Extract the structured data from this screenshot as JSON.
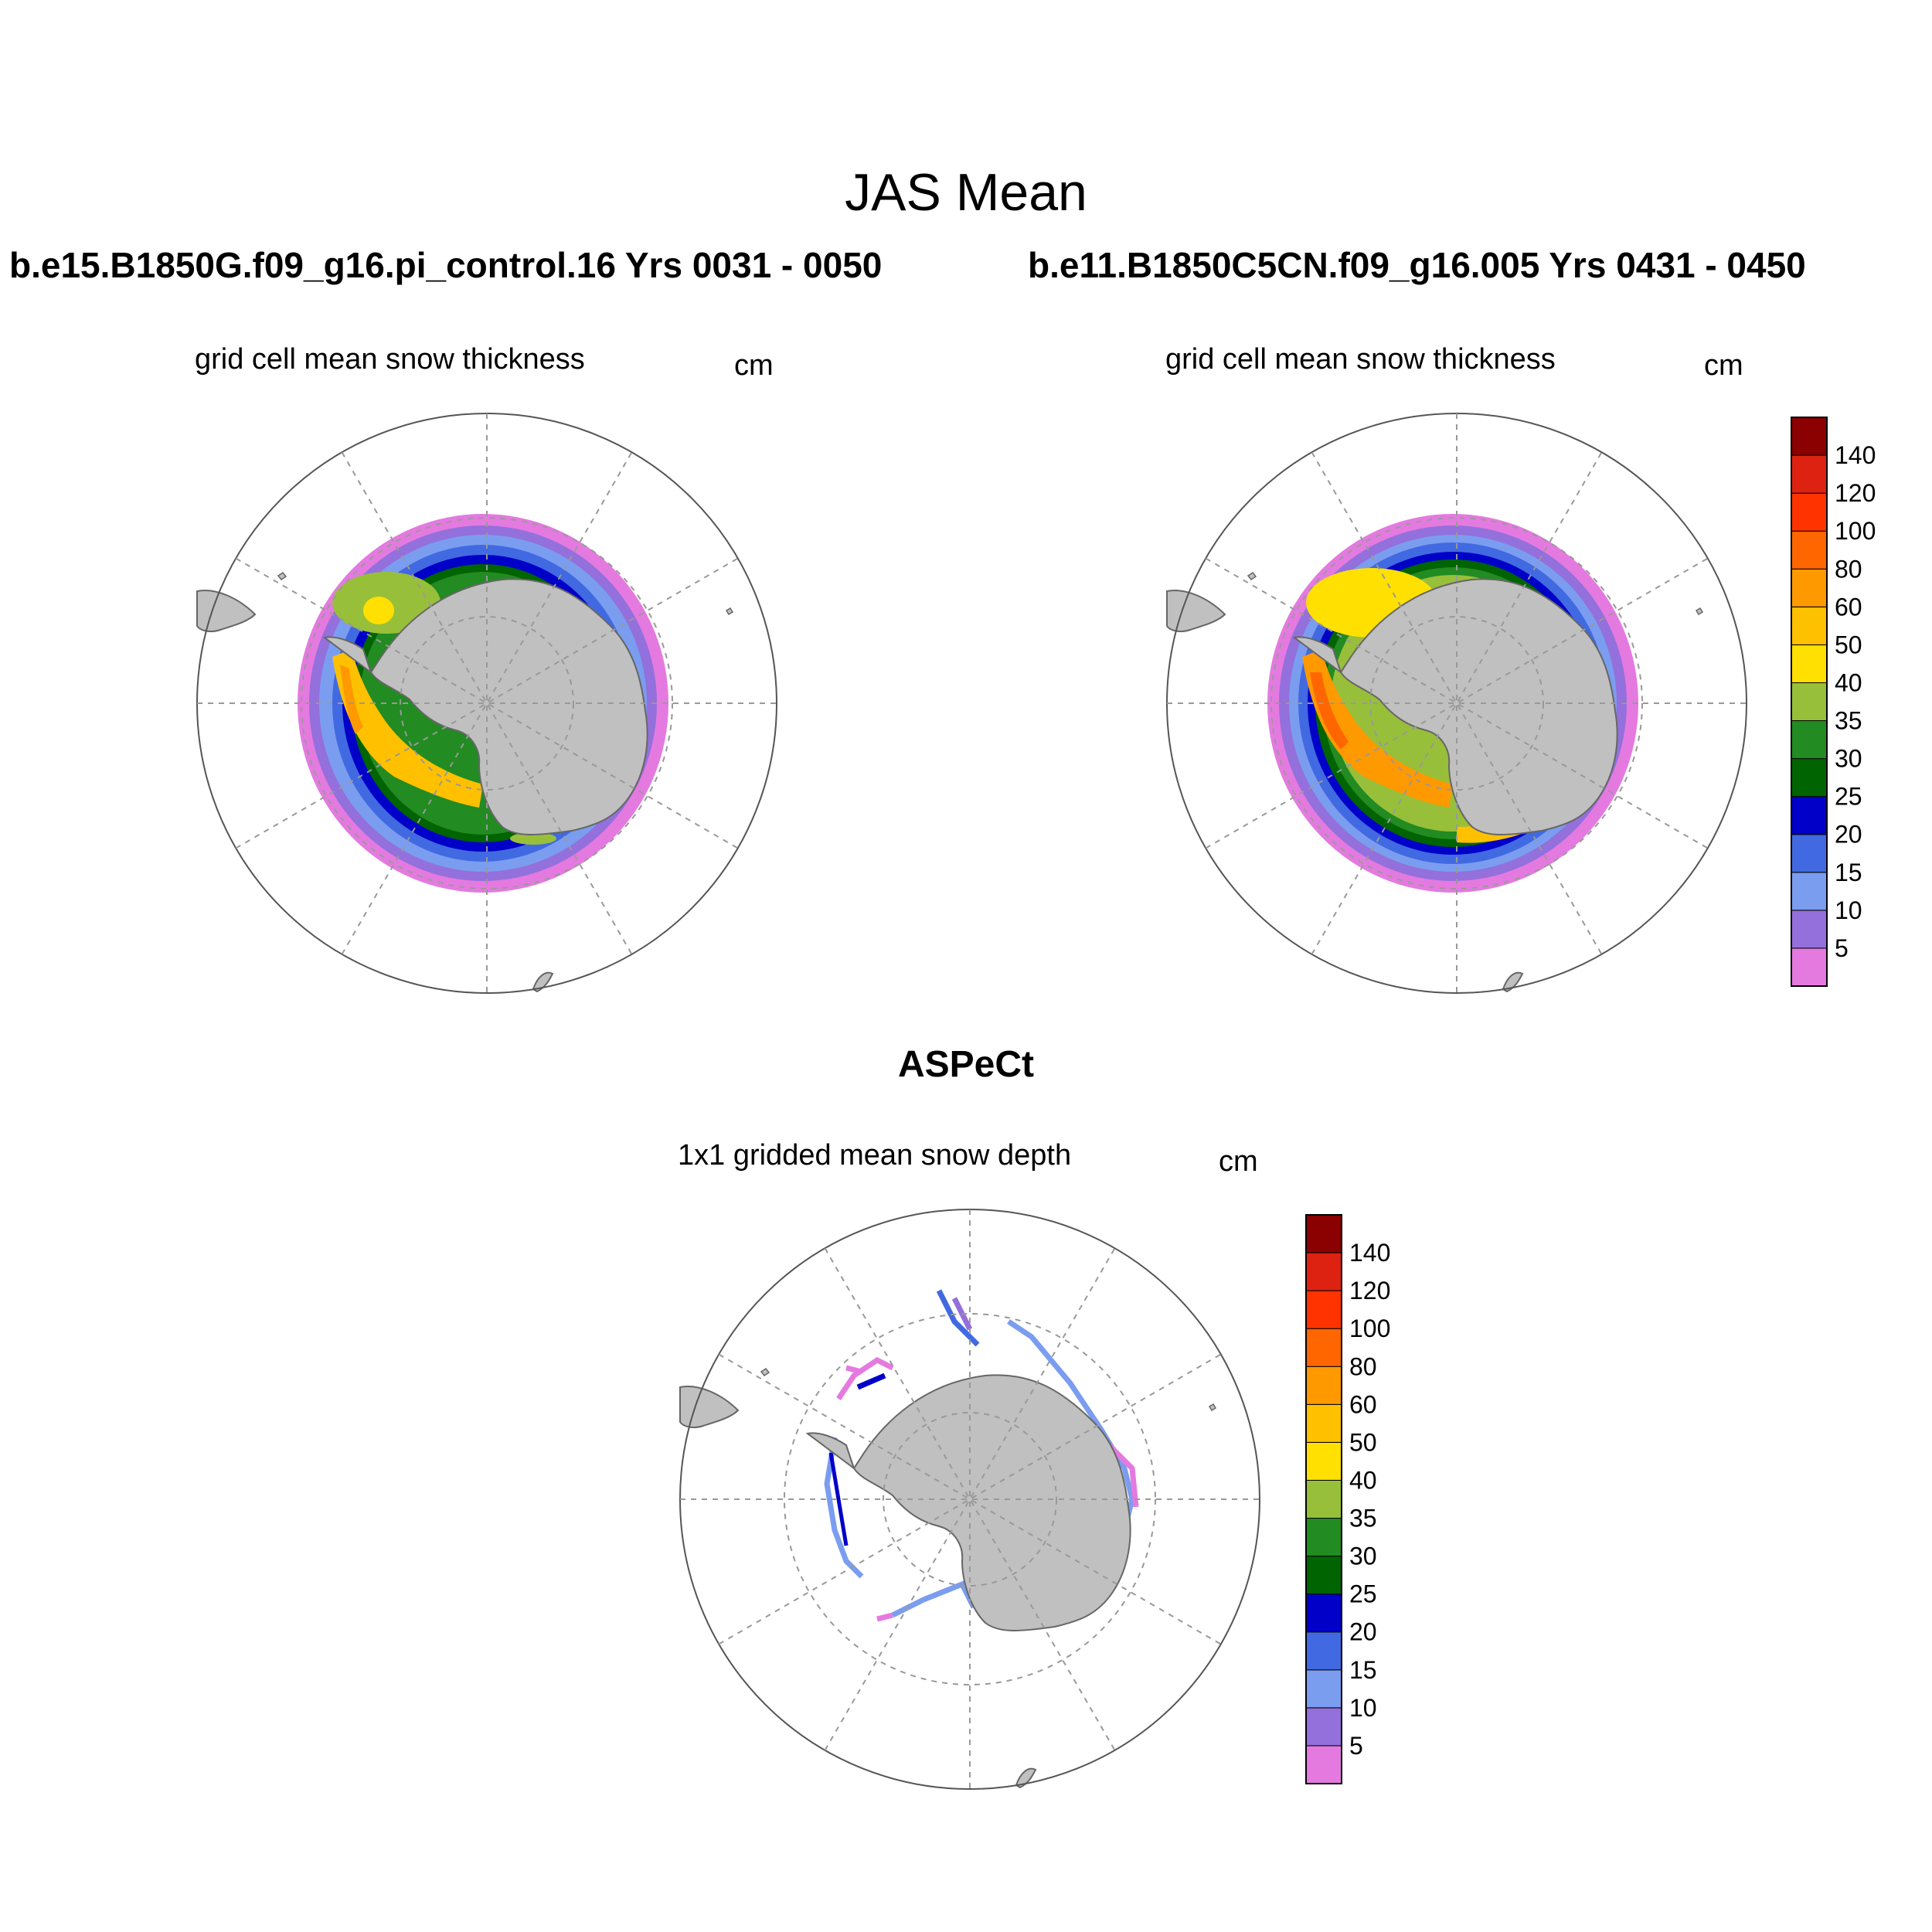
{
  "main_title": "JAS Mean",
  "top_left": {
    "run": "b.e15.B1850G.f09_g16.pi_control.16  Yrs 0031 - 0050",
    "plot_title": "grid cell mean snow thickness",
    "unit": "cm"
  },
  "top_right": {
    "run": "b.e11.B1850C5CN.f09_g16.005  Yrs 0431 - 0450",
    "plot_title": "grid cell mean snow thickness",
    "unit": "cm"
  },
  "bottom": {
    "dataset": "ASPeCt",
    "plot_title": "1x1 gridded mean snow depth",
    "unit": "cm"
  },
  "colorbar": {
    "labels": [
      "5",
      "10",
      "15",
      "20",
      "25",
      "30",
      "35",
      "40",
      "50",
      "60",
      "80",
      "100",
      "120",
      "140"
    ],
    "colors": [
      "#e47ae0",
      "#9370db",
      "#7b9df0",
      "#4169e1",
      "#0000c8",
      "#006400",
      "#228b22",
      "#98bf3a",
      "#ffe000",
      "#ffc000",
      "#ff9900",
      "#ff6600",
      "#ff3300",
      "#dd2211",
      "#8b0000"
    ]
  },
  "map_colors": {
    "land": "#c0c0c0",
    "grid": "#808080"
  }
}
